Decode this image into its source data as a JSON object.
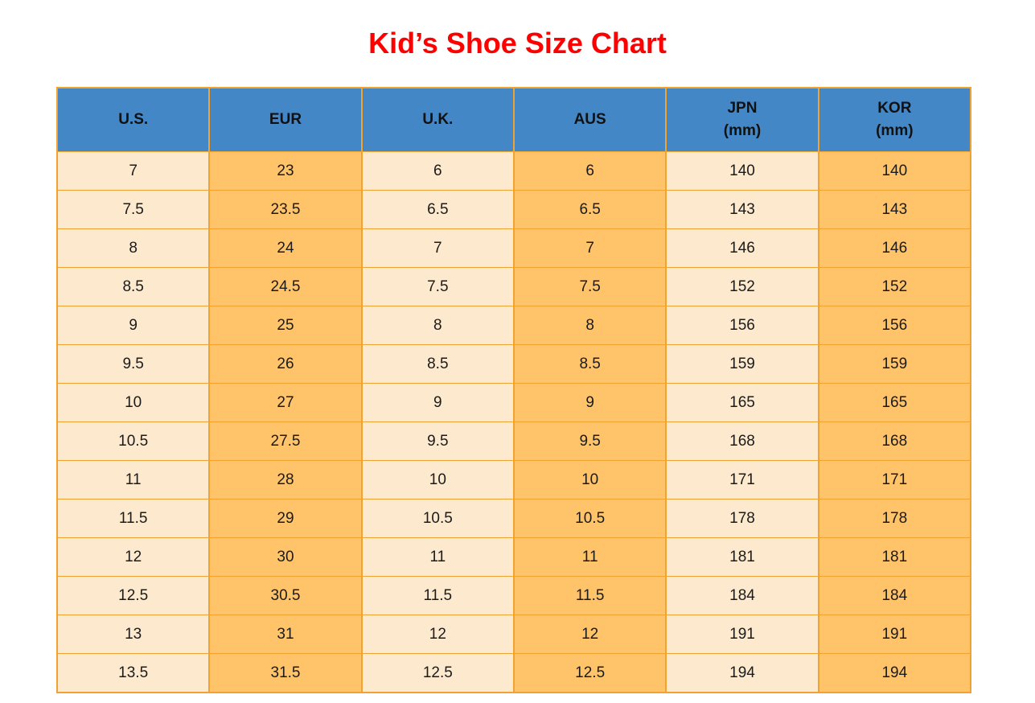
{
  "page": {
    "title": "Kid’s Shoe Size Chart"
  },
  "colors": {
    "title_red": "#ff0000",
    "header_blue": "#4487c6",
    "cell_cream": "#fde9ce",
    "cell_orange": "#ffc36a",
    "border_orange": "#f0a330",
    "text_black": "#1b1b1b"
  },
  "table": {
    "headers": [
      {
        "label": "U.S.",
        "sub": ""
      },
      {
        "label": "EUR",
        "sub": ""
      },
      {
        "label": "U.K.",
        "sub": ""
      },
      {
        "label": "AUS",
        "sub": ""
      },
      {
        "label": "JPN",
        "sub": "(mm)"
      },
      {
        "label": "KOR",
        "sub": "(mm)"
      }
    ],
    "rows": [
      [
        "7",
        "23",
        "6",
        "6",
        "140",
        "140"
      ],
      [
        "7.5",
        "23.5",
        "6.5",
        "6.5",
        "143",
        "143"
      ],
      [
        "8",
        "24",
        "7",
        "7",
        "146",
        "146"
      ],
      [
        "8.5",
        "24.5",
        "7.5",
        "7.5",
        "152",
        "152"
      ],
      [
        "9",
        "25",
        "8",
        "8",
        "156",
        "156"
      ],
      [
        "9.5",
        "26",
        "8.5",
        "8.5",
        "159",
        "159"
      ],
      [
        "10",
        "27",
        "9",
        "9",
        "165",
        "165"
      ],
      [
        "10.5",
        "27.5",
        "9.5",
        "9.5",
        "168",
        "168"
      ],
      [
        "11",
        "28",
        "10",
        "10",
        "171",
        "171"
      ],
      [
        "11.5",
        "29",
        "10.5",
        "10.5",
        "178",
        "178"
      ],
      [
        "12",
        "30",
        "11",
        "11",
        "181",
        "181"
      ],
      [
        "12.5",
        "30.5",
        "11.5",
        "11.5",
        "184",
        "184"
      ],
      [
        "13",
        "31",
        "12",
        "12",
        "191",
        "191"
      ],
      [
        "13.5",
        "31.5",
        "12.5",
        "12.5",
        "194",
        "194"
      ]
    ]
  },
  "chart_data": {
    "type": "table",
    "title": "Kid’s Shoe Size Chart",
    "columns": [
      "U.S.",
      "EUR",
      "U.K.",
      "AUS",
      "JPN (mm)",
      "KOR (mm)"
    ],
    "rows": [
      [
        7,
        23,
        6,
        6,
        140,
        140
      ],
      [
        7.5,
        23.5,
        6.5,
        6.5,
        143,
        143
      ],
      [
        8,
        24,
        7,
        7,
        146,
        146
      ],
      [
        8.5,
        24.5,
        7.5,
        7.5,
        152,
        152
      ],
      [
        9,
        25,
        8,
        8,
        156,
        156
      ],
      [
        9.5,
        26,
        8.5,
        8.5,
        159,
        159
      ],
      [
        10,
        27,
        9,
        9,
        165,
        165
      ],
      [
        10.5,
        27.5,
        9.5,
        9.5,
        168,
        168
      ],
      [
        11,
        28,
        10,
        10,
        171,
        171
      ],
      [
        11.5,
        29,
        10.5,
        10.5,
        178,
        178
      ],
      [
        12,
        30,
        11,
        11,
        181,
        181
      ],
      [
        12.5,
        30.5,
        11.5,
        11.5,
        184,
        184
      ],
      [
        13,
        31,
        12,
        12,
        191,
        191
      ],
      [
        13.5,
        31.5,
        12.5,
        12.5,
        194,
        194
      ]
    ],
    "layout": {
      "header_fill": "#4487c6",
      "column_fills_alternating": [
        "#fde9ce",
        "#ffc36a"
      ],
      "grid": "on",
      "grid_color": "#f0a330"
    }
  }
}
